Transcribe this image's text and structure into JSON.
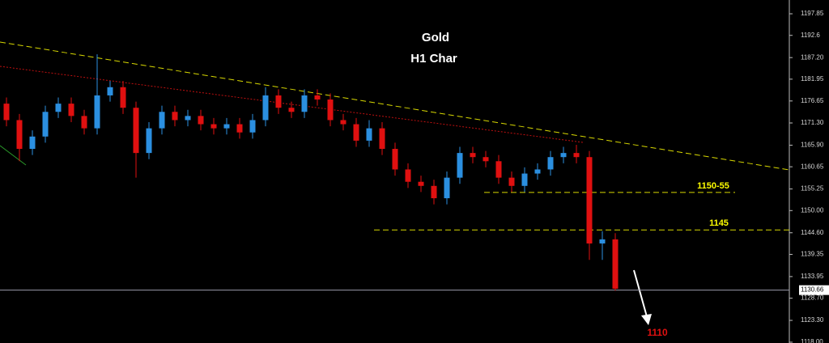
{
  "chart_data": {
    "type": "candlestick",
    "title": "Gold",
    "subtitle": "H1 Char",
    "up_color": "#2b8fe0",
    "down_color": "#e01010",
    "open": [
      1176,
      1172,
      1165,
      1168,
      1174,
      1176,
      1173,
      1170,
      1178,
      1180,
      1175,
      1164,
      1170,
      1174,
      1172,
      1173,
      1171,
      1170,
      1171,
      1169,
      1172,
      1178,
      1175,
      1174,
      1178,
      1177,
      1172,
      1171,
      1167,
      1170,
      1165,
      1160,
      1157,
      1156,
      1153,
      1158,
      1164,
      1163,
      1162,
      1158,
      1156,
      1159,
      1160,
      1163,
      1164,
      1163,
      1142,
      1143
    ],
    "high": [
      1177.5,
      1173.5,
      1169.5,
      1175.5,
      1177.5,
      1177.5,
      1174.5,
      1188,
      1181.5,
      1181.5,
      1176.5,
      1171.5,
      1175.5,
      1175.5,
      1174.5,
      1174.5,
      1172.5,
      1172.5,
      1172.5,
      1173.5,
      1180,
      1179.5,
      1176.5,
      1179.5,
      1179.5,
      1178.5,
      1173.5,
      1172.5,
      1172,
      1171.5,
      1166.5,
      1161.5,
      1158.5,
      1157.5,
      1159.5,
      1165.5,
      1165.5,
      1164.5,
      1163.5,
      1159.5,
      1160.5,
      1161.5,
      1164.5,
      1165.5,
      1166,
      1164.5,
      1145,
      1144.5
    ],
    "low": [
      1170.5,
      1162,
      1163.5,
      1166.5,
      1172.5,
      1171.5,
      1168.5,
      1168.5,
      1176.5,
      1173.5,
      1158,
      1162.5,
      1168.5,
      1170.5,
      1170.5,
      1169.5,
      1168.5,
      1168.5,
      1167.5,
      1167.5,
      1170.5,
      1173.5,
      1172.5,
      1172.5,
      1175.5,
      1170.5,
      1169.5,
      1165.5,
      1165.5,
      1163.5,
      1158.5,
      1155.5,
      1154.5,
      1151.5,
      1151.5,
      1156.5,
      1161.5,
      1160.5,
      1156.5,
      1154.5,
      1154.5,
      1157.5,
      1158.5,
      1161.5,
      1161.5,
      1138,
      1138,
      1130.5
    ],
    "close": [
      1172,
      1165,
      1168,
      1174,
      1176,
      1173,
      1170,
      1178,
      1180,
      1175,
      1164,
      1170,
      1174,
      1172,
      1173,
      1171,
      1170,
      1171,
      1169,
      1172,
      1178,
      1175,
      1174,
      1178,
      1177,
      1172,
      1171,
      1167,
      1170,
      1165,
      1160,
      1157,
      1156,
      1153,
      1158,
      1164,
      1163,
      1162,
      1158,
      1156,
      1159,
      1160,
      1163,
      1164,
      1163,
      1142,
      1143,
      1131
    ],
    "ylim": [
      1117.8,
      1201.2
    ],
    "yticks": [
      1197.85,
      1192.6,
      {
        "value": 1187.2,
        "label": "1187.20"
      },
      1181.95,
      1176.65,
      {
        "value": 1171.3,
        "label": "1171.30"
      },
      {
        "value": 1165.9,
        "label": "1165.90"
      },
      1160.65,
      1155.25,
      {
        "value": 1150,
        "label": "1150.00"
      },
      {
        "value": 1144.6,
        "label": "1144.60"
      },
      1139.35,
      1133.95,
      {
        "value": 1128.7,
        "label": "1128.70"
      },
      {
        "value": 1123.3,
        "label": "1123.30"
      },
      {
        "value": 1118,
        "label": "1118.00"
      }
    ],
    "current_price": 1130.66,
    "levels": [
      {
        "label": "1150-55",
        "value": 1154.4
      },
      {
        "label": "1145",
        "value": 1145.3
      }
    ],
    "target_label": "1110"
  }
}
